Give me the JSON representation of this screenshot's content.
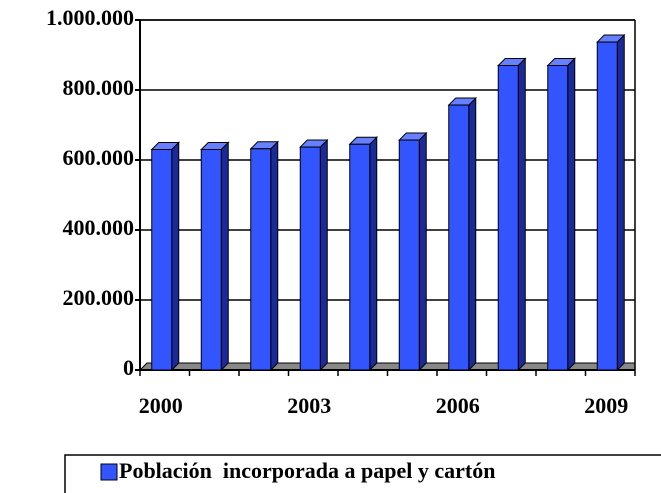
{
  "chart_data": {
    "type": "bar",
    "categories": [
      "2000",
      null,
      null,
      "2003",
      null,
      null,
      "2006",
      null,
      null,
      "2009"
    ],
    "series": [
      {
        "name": "Población  incorporada a papel y cartón",
        "color": "#3355ff",
        "values": [
          630000,
          630000,
          632000,
          637000,
          645000,
          657000,
          757000,
          870000,
          870000,
          937000
        ]
      }
    ],
    "ylim": [
      0,
      1000000
    ],
    "yticks": [
      0,
      {
        "value": 200000,
        "label": "200.000"
      },
      {
        "value": 400000,
        "label": "400.000"
      },
      {
        "value": 600000,
        "label": "600.000"
      },
      {
        "value": 800000,
        "label": "800.000"
      },
      {
        "value": 1000000,
        "label": "1.000.000"
      }
    ],
    "grid": true,
    "legend": "bottom"
  }
}
